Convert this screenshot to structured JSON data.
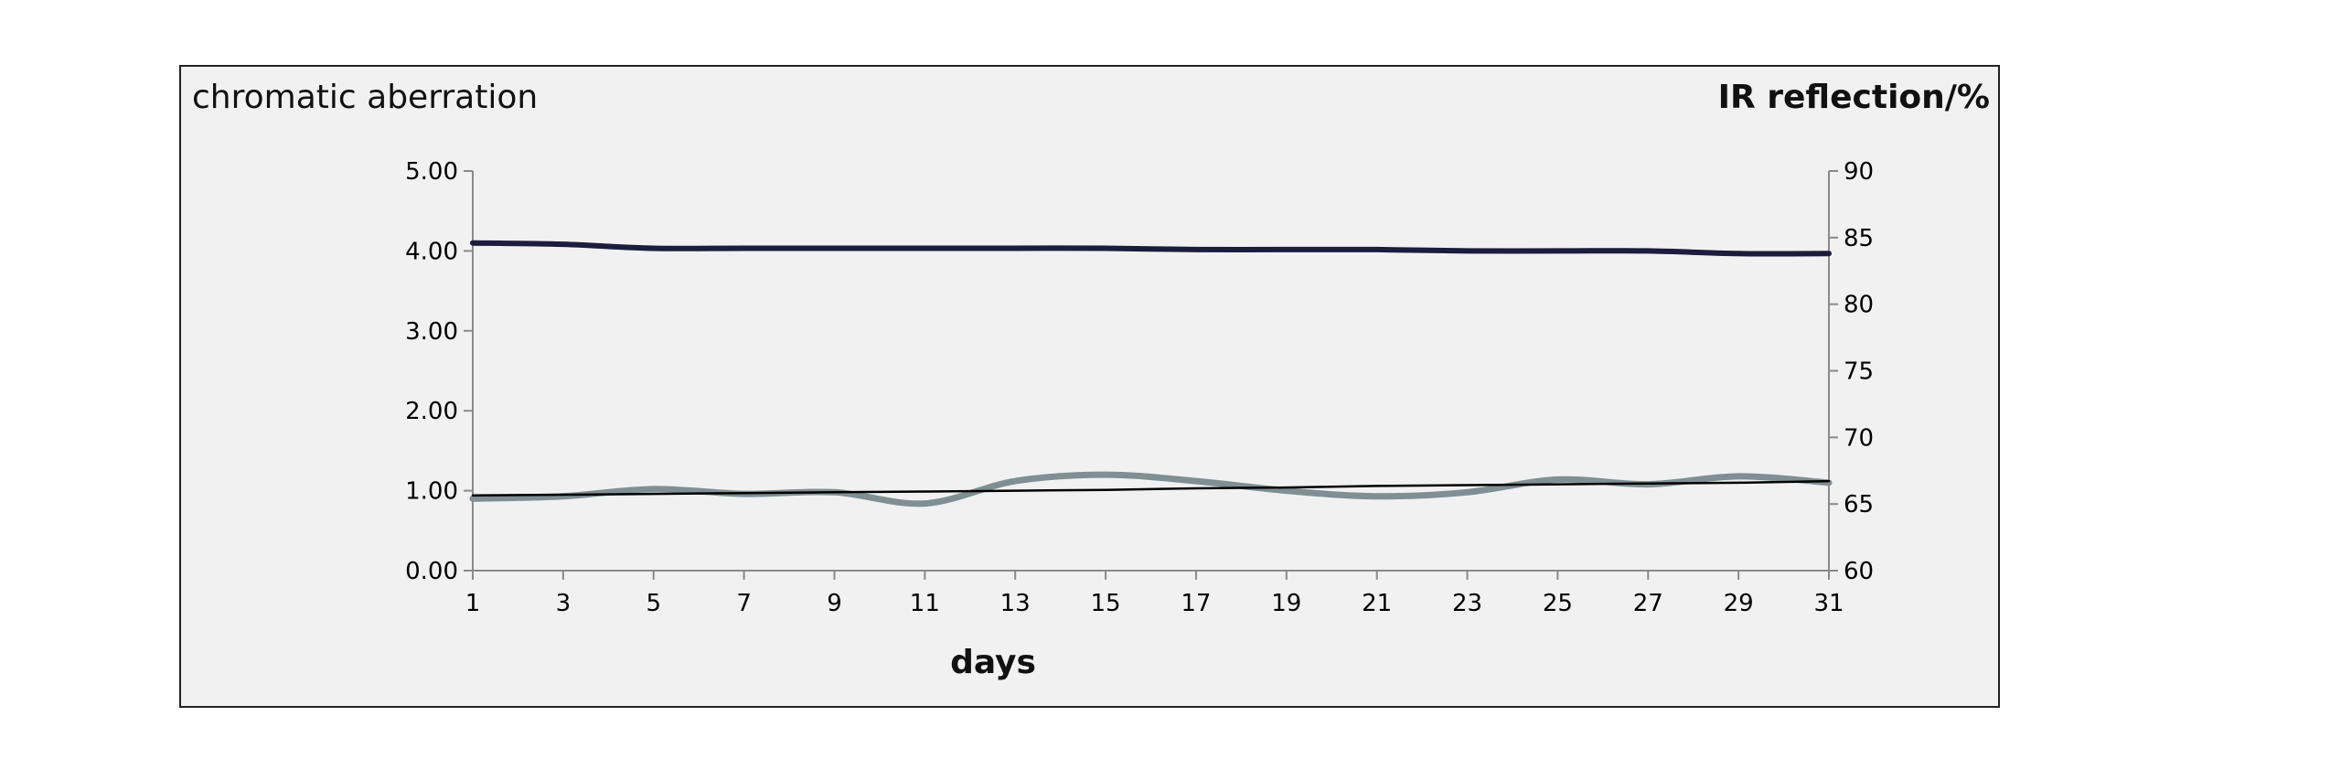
{
  "chart_data": {
    "type": "line",
    "left_axis_label": "chromatic aberration",
    "right_axis_label": "IR reflection/%",
    "xlabel": "days",
    "x": [
      1,
      3,
      5,
      7,
      9,
      11,
      13,
      15,
      17,
      19,
      21,
      23,
      25,
      27,
      29,
      31
    ],
    "x_ticks": [
      "1",
      "3",
      "5",
      "7",
      "9",
      "11",
      "13",
      "15",
      "17",
      "19",
      "21",
      "23",
      "25",
      "27",
      "29",
      "31"
    ],
    "ylim_left": [
      0,
      5
    ],
    "yticks_left": [
      "0.00",
      "1.00",
      "2.00",
      "3.00",
      "4.00",
      "5.00"
    ],
    "ylim_right": [
      60,
      90
    ],
    "yticks_right": [
      "60",
      "65",
      "70",
      "75",
      "80",
      "85",
      "90"
    ],
    "grid": false,
    "series": [
      {
        "axis": "right",
        "color": "#1c1c3c",
        "values": [
          84.6,
          84.5,
          84.2,
          84.2,
          84.2,
          84.2,
          84.2,
          84.2,
          84.1,
          84.1,
          84.1,
          84.0,
          84.0,
          84.0,
          83.8,
          83.8
        ]
      },
      {
        "axis": "left",
        "color": "#7f8f93",
        "values": [
          0.9,
          0.93,
          1.02,
          0.96,
          0.98,
          0.84,
          1.12,
          1.2,
          1.12,
          1.0,
          0.93,
          0.98,
          1.14,
          1.08,
          1.18,
          1.1
        ]
      },
      {
        "axis": "left",
        "color": "#000000",
        "values": [
          0.94,
          0.95,
          0.96,
          0.97,
          0.98,
          0.99,
          1.0,
          1.01,
          1.03,
          1.04,
          1.06,
          1.07,
          1.08,
          1.09,
          1.1,
          1.12
        ]
      }
    ]
  }
}
